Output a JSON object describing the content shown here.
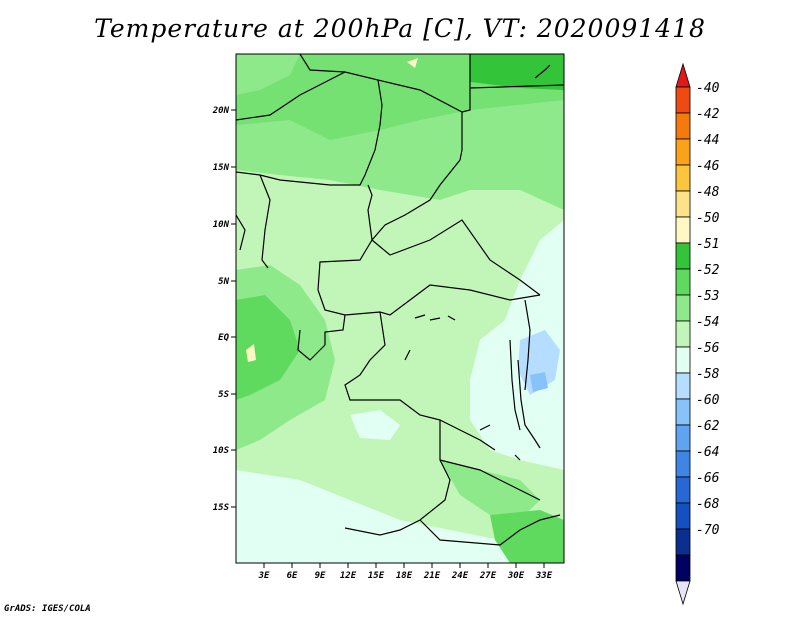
{
  "title": "Temperature at 200hPa [C], VT: 2020091418",
  "credit": "GrADS: IGES/COLA",
  "map": {
    "lat_labels": [
      "20N",
      "15N",
      "10N",
      "5N",
      "EQ",
      "5S",
      "10S",
      "15S"
    ],
    "lon_labels": [
      "3E",
      "6E",
      "9E",
      "12E",
      "15E",
      "18E",
      "21E",
      "24E",
      "27E",
      "30E",
      "33E"
    ]
  },
  "colorbar": {
    "labels": [
      "-40",
      "-42",
      "-44",
      "-46",
      "-48",
      "-50",
      "-51",
      "-52",
      "-53",
      "-54",
      "-56",
      "-58",
      "-60",
      "-62",
      "-64",
      "-66",
      "-68",
      "-70"
    ],
    "colors": [
      "#e01a1a",
      "#ee4a12",
      "#f57a0c",
      "#f9a21a",
      "#fbc53c",
      "#fde28a",
      "#fff7c4",
      "#33c43a",
      "#5fda5f",
      "#8ee98a",
      "#c2f6b8",
      "#e2fff4",
      "#b4ddff",
      "#88c2fa",
      "#5ea4f2",
      "#3e85e6",
      "#2668d6",
      "#1450c2",
      "#0a2f8e",
      "#000060",
      "#e8e4f8"
    ]
  }
}
